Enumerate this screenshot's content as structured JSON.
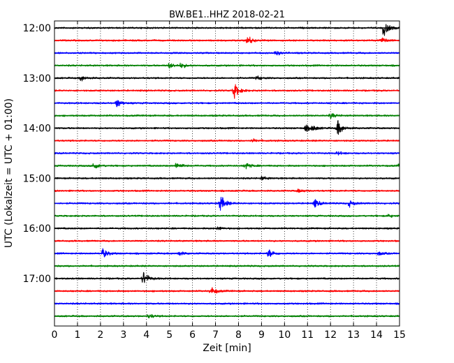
{
  "chart_data": {
    "type": "line",
    "title": "BW.BE1..HHZ 2018-02-21",
    "xlabel": "Zeit  [min]",
    "ylabel": "UTC (Lokalzeit = UTC + 01:00)",
    "xlim": [
      0,
      15
    ],
    "x_ticks": [
      "0",
      "1",
      "2",
      "3",
      "4",
      "5",
      "6",
      "7",
      "8",
      "9",
      "10",
      "11",
      "12",
      "13",
      "14",
      "15"
    ],
    "y_tick_labels": [
      "12:00",
      "13:00",
      "14:00",
      "15:00",
      "16:00",
      "17:00"
    ],
    "grid": true,
    "trace_colors": [
      "#000000",
      "#ff0000",
      "#0000ff",
      "#008000"
    ],
    "traces": [
      {
        "start": "12:00",
        "color": "#000000",
        "events": [
          {
            "t": 14.3,
            "amp": 1.0
          }
        ]
      },
      {
        "start": "12:15",
        "color": "#ff0000",
        "events": [
          {
            "t": 8.4,
            "amp": 0.5
          },
          {
            "t": 14.2,
            "amp": 0.4
          }
        ]
      },
      {
        "start": "12:30",
        "color": "#0000ff",
        "events": [
          {
            "t": 9.6,
            "amp": 0.3
          }
        ]
      },
      {
        "start": "12:45",
        "color": "#008000",
        "events": [
          {
            "t": 5.0,
            "amp": 0.35
          },
          {
            "t": 5.5,
            "amp": 0.3
          }
        ]
      },
      {
        "start": "13:00",
        "color": "#000000",
        "events": [
          {
            "t": 1.15,
            "amp": 0.35
          },
          {
            "t": 8.8,
            "amp": 0.25
          }
        ]
      },
      {
        "start": "13:15",
        "color": "#ff0000",
        "events": [
          {
            "t": 7.8,
            "amp": 1.0
          }
        ]
      },
      {
        "start": "13:30",
        "color": "#0000ff",
        "events": [
          {
            "t": 2.7,
            "amp": 0.5
          }
        ]
      },
      {
        "start": "13:45",
        "color": "#008000",
        "events": [
          {
            "t": 12.0,
            "amp": 0.3
          }
        ]
      },
      {
        "start": "14:00",
        "color": "#000000",
        "events": [
          {
            "t": 10.9,
            "amp": 0.4
          },
          {
            "t": 11.2,
            "amp": 0.3
          },
          {
            "t": 12.3,
            "amp": 0.9
          }
        ]
      },
      {
        "start": "14:15",
        "color": "#ff0000",
        "events": [
          {
            "t": 8.6,
            "amp": 0.2
          }
        ]
      },
      {
        "start": "14:30",
        "color": "#0000ff",
        "events": [
          {
            "t": 12.3,
            "amp": 0.2
          }
        ]
      },
      {
        "start": "14:45",
        "color": "#008000",
        "events": [
          {
            "t": 1.7,
            "amp": 0.45
          },
          {
            "t": 5.3,
            "amp": 0.45
          },
          {
            "t": 8.3,
            "amp": 0.4
          },
          {
            "t": 15.0,
            "amp": 0.3
          }
        ]
      },
      {
        "start": "15:00",
        "color": "#000000",
        "events": [
          {
            "t": 9.0,
            "amp": 0.2
          }
        ]
      },
      {
        "start": "15:15",
        "color": "#ff0000",
        "events": [
          {
            "t": 10.6,
            "amp": 0.2
          }
        ]
      },
      {
        "start": "15:30",
        "color": "#0000ff",
        "events": [
          {
            "t": 7.2,
            "amp": 1.0
          },
          {
            "t": 11.3,
            "amp": 0.5
          },
          {
            "t": 12.8,
            "amp": 0.4
          }
        ]
      },
      {
        "start": "15:45",
        "color": "#008000",
        "events": [
          {
            "t": 14.5,
            "amp": 0.2
          }
        ]
      },
      {
        "start": "16:00",
        "color": "#000000",
        "events": [
          {
            "t": 7.1,
            "amp": 0.2
          }
        ]
      },
      {
        "start": "16:15",
        "color": "#ff0000",
        "events": []
      },
      {
        "start": "16:30",
        "color": "#0000ff",
        "events": [
          {
            "t": 2.1,
            "amp": 0.6
          },
          {
            "t": 5.4,
            "amp": 0.25
          },
          {
            "t": 9.3,
            "amp": 0.55
          },
          {
            "t": 14.1,
            "amp": 0.2
          }
        ]
      },
      {
        "start": "16:45",
        "color": "#008000",
        "events": []
      },
      {
        "start": "17:00",
        "color": "#000000",
        "events": [
          {
            "t": 3.85,
            "amp": 0.85
          }
        ]
      },
      {
        "start": "17:15",
        "color": "#ff0000",
        "events": [
          {
            "t": 6.8,
            "amp": 0.55
          }
        ]
      },
      {
        "start": "17:30",
        "color": "#0000ff",
        "events": []
      },
      {
        "start": "17:45",
        "color": "#008000",
        "events": [
          {
            "t": 4.1,
            "amp": 0.25
          }
        ]
      }
    ]
  }
}
